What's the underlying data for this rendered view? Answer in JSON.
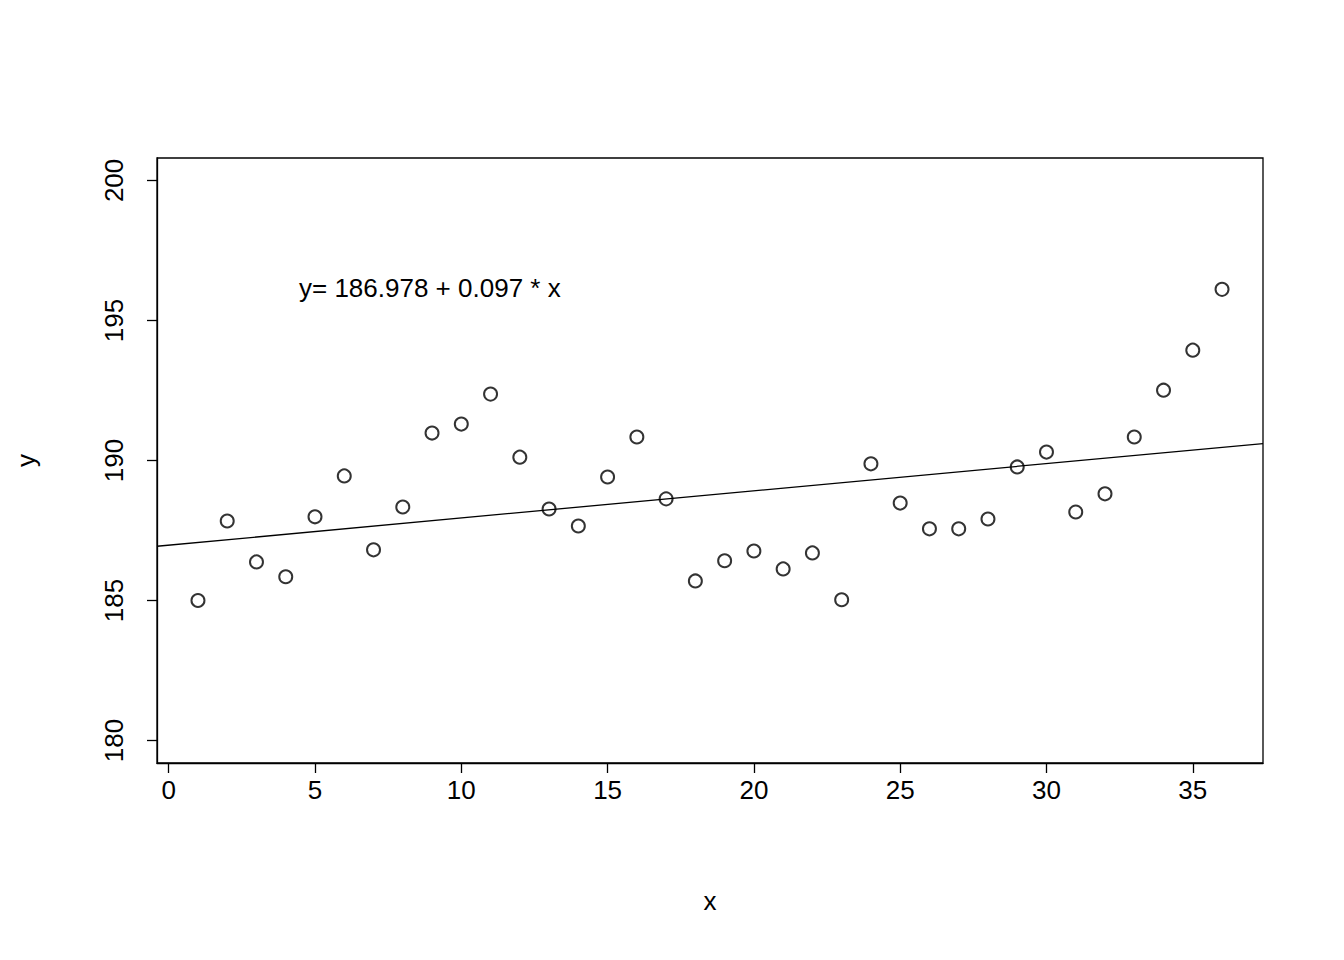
{
  "chart_data": {
    "type": "scatter",
    "x": [
      1,
      2,
      3,
      4,
      5,
      6,
      7,
      8,
      9,
      10,
      11,
      12,
      13,
      14,
      15,
      16,
      17,
      18,
      19,
      20,
      21,
      22,
      23,
      24,
      25,
      26,
      27,
      28,
      29,
      30,
      31,
      32,
      33,
      34,
      35,
      36
    ],
    "values": [
      185.0,
      187.84,
      186.38,
      185.85,
      187.99,
      189.45,
      186.81,
      188.34,
      190.98,
      191.3,
      192.37,
      190.12,
      188.27,
      187.66,
      189.41,
      190.84,
      188.63,
      185.7,
      186.42,
      186.77,
      186.13,
      186.7,
      185.03,
      189.88,
      188.48,
      187.56,
      187.56,
      187.91,
      189.77,
      190.3,
      188.16,
      188.81,
      190.84,
      192.51,
      193.94,
      196.11
    ],
    "color": "#000000",
    "marker": "open_circle",
    "xlabel": "x",
    "ylabel": "y",
    "annotation": "y= 186.978 + 0.097 * x",
    "fit": {
      "intercept": 186.978,
      "slope": 0.097
    },
    "xlim": [
      -0.4,
      37.4
    ],
    "ylim": [
      179.2,
      200.8
    ],
    "xticks": [
      0,
      5,
      10,
      15,
      20,
      25,
      30,
      35
    ],
    "yticks": [
      180,
      185,
      190,
      195,
      200
    ],
    "grid": false
  }
}
